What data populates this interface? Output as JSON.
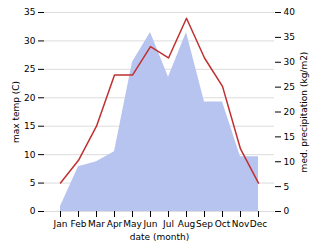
{
  "chart_data": {
    "type": "line",
    "categories": [
      "Jan",
      "Feb",
      "Mar",
      "Apr",
      "May",
      "Jun",
      "Jul",
      "Aug",
      "Sep",
      "Oct",
      "Nov",
      "Dec"
    ],
    "xlabel": "date (month)",
    "ylabel": "max temp (C)",
    "y2label": "med. precipitation (kg/m2)",
    "series": [
      {
        "type": "area",
        "axis": "y2",
        "color": "#b8c4f0",
        "values": [
          1,
          9,
          10,
          12,
          30,
          36,
          27,
          36,
          22,
          22,
          11,
          11
        ]
      },
      {
        "type": "line",
        "axis": "y",
        "color": "#c03030",
        "values": [
          5,
          9,
          15,
          24,
          24,
          29,
          27,
          34,
          27,
          22,
          11,
          5
        ]
      }
    ],
    "ylim": [
      0,
      35
    ],
    "yticks": [
      0,
      5,
      10,
      15,
      20,
      25,
      30,
      35
    ],
    "y2lim": [
      0,
      40
    ],
    "y2ticks": [
      0,
      5,
      10,
      15,
      20,
      25,
      30,
      35,
      40
    ],
    "grid": true
  }
}
